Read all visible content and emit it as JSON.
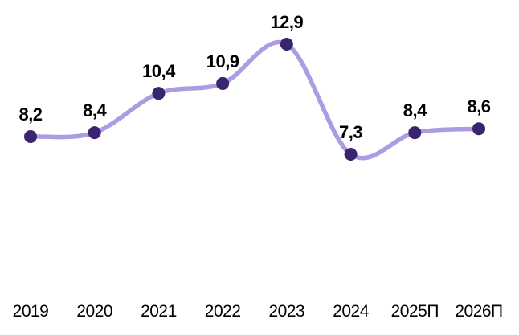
{
  "chart_data": {
    "type": "line",
    "categories": [
      "2019",
      "2020",
      "2021",
      "2022",
      "2023",
      "2024",
      "2025П",
      "2026П"
    ],
    "values": [
      8.2,
      8.4,
      10.4,
      10.9,
      12.9,
      7.3,
      8.4,
      8.6
    ],
    "point_labels": [
      "8,2",
      "8,4",
      "10,4",
      "10,9",
      "12,9",
      "7,3",
      "8,4",
      "8,6"
    ],
    "title": "",
    "xlabel": "",
    "ylabel": "",
    "ylim": [
      6,
      14
    ],
    "grid": false,
    "legend": false,
    "smooth": true,
    "colors": {
      "line": "#ac9ce2",
      "marker": "#3a2470",
      "value_label": "#000000",
      "axis_label": "#000000",
      "background": "#ffffff"
    }
  }
}
